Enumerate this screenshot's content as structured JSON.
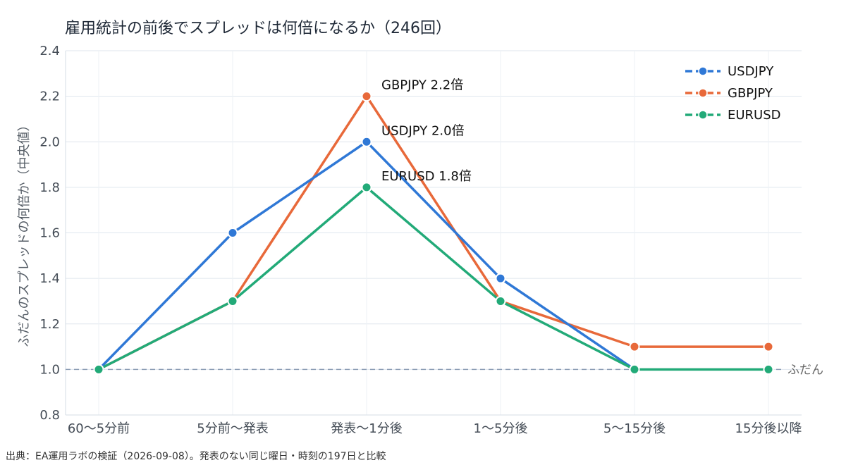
{
  "title": "雇用統計の前後でスプレッドは何倍になるか（246回）",
  "source": "出典：EA運用ラボの検証（2026-09-08）。発表のない同じ曜日・時刻の197日と比較",
  "chart_data": {
    "type": "line",
    "categories": [
      "60〜5分前",
      "5分前〜発表",
      "発表〜1分後",
      "1〜5分後",
      "5〜15分後",
      "15分後以降"
    ],
    "series": [
      {
        "name": "USDJPY",
        "color": "#2f78d6",
        "values": [
          1.0,
          1.6,
          2.0,
          1.4,
          1.0,
          null
        ]
      },
      {
        "name": "GBPJPY",
        "color": "#e8693a",
        "values": [
          1.0,
          1.3,
          2.2,
          1.3,
          1.1,
          1.1
        ]
      },
      {
        "name": "EURUSD",
        "color": "#22aa78",
        "values": [
          1.0,
          1.3,
          1.8,
          1.3,
          1.0,
          1.0
        ]
      }
    ],
    "ylabel": "ふだんのスプレッドの何倍か（中央値）",
    "xlabel": "",
    "ylim": [
      0.8,
      2.4
    ],
    "yticks": [
      0.8,
      1.0,
      1.2,
      1.4,
      1.6,
      1.8,
      2.0,
      2.2,
      2.4
    ],
    "yticklabels": [
      "0.8",
      "1.0",
      "1.2",
      "1.4",
      "1.6",
      "1.8",
      "2.0",
      "2.2",
      "2.4"
    ],
    "grid": true,
    "legend": "top-right",
    "baseline": {
      "value": 1.0,
      "label": "ふだん",
      "color": "#8a9bb3"
    },
    "annotations": [
      {
        "text": "GBPJPY 2.2倍",
        "category": 2,
        "y": 2.2
      },
      {
        "text": "USDJPY 2.0倍",
        "category": 2,
        "y": 2.0
      },
      {
        "text": "EURUSD 1.8倍",
        "category": 2,
        "y": 1.8
      }
    ]
  }
}
